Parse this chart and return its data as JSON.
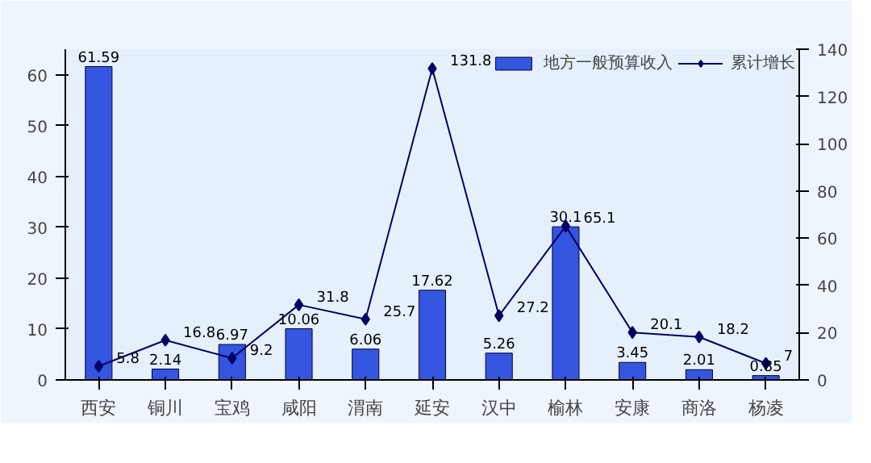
{
  "chart_data": {
    "type": "bar",
    "categories": [
      "西安",
      "铜川",
      "宝鸡",
      "咸阳",
      "渭南",
      "延安",
      "汉中",
      "榆林",
      "安康",
      "商洛",
      "杨凌"
    ],
    "series": [
      {
        "name": "地方一般预算收入",
        "color": "#3355e0",
        "values": [
          61.59,
          2.14,
          6.97,
          10.06,
          6.06,
          17.62,
          5.26,
          30.1,
          3.45,
          2.01,
          0.85
        ]
      },
      {
        "name": "累计增长",
        "type": "line",
        "axis": "y2",
        "color": "#000066",
        "values": [
          5.8,
          16.8,
          9.2,
          31.8,
          25.7,
          131.8,
          27.2,
          65.1,
          20.1,
          18.2,
          7
        ]
      }
    ],
    "ylim": [
      0,
      65
    ],
    "yticks": [
      0,
      10,
      20,
      30,
      40,
      50,
      60
    ],
    "y2lim": [
      0,
      140
    ],
    "y2ticks": [
      0,
      20,
      40,
      60,
      80,
      100,
      120,
      140
    ],
    "data_labels": true,
    "legend": "top right",
    "marker": "diamond",
    "grid": false
  }
}
